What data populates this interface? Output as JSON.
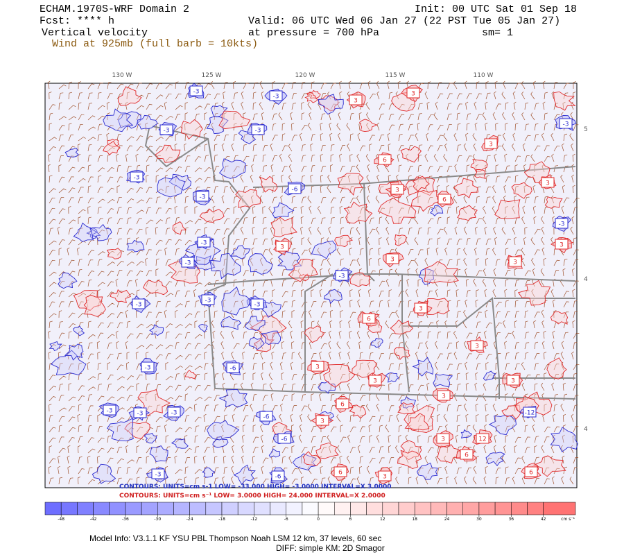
{
  "header": {
    "model": "ECHAM.1970S-WRF Domain 2",
    "init": "Init: 00 UTC Sat 01 Sep 18",
    "fcst": "Fcst: **** h",
    "valid": "Valid: 06 UTC Wed 06 Jan 27 (22 PST Tue 05 Jan 27)",
    "field": "Vertical velocity",
    "level": "at pressure =  700 hPa",
    "smooth": "sm= 1",
    "wind": "Wind at 925mb (full barb = 10kts)"
  },
  "map": {
    "lon_labels": [
      "130 W",
      "125 W",
      "120 W",
      "115 W",
      "110 W"
    ],
    "lat_labels": [
      "5",
      "4",
      "4"
    ],
    "contour_labels": {
      "negative": [
        "-3",
        "-3",
        "-3",
        "-3",
        "-3",
        "-3",
        "-3",
        "-6",
        "-3",
        "-3",
        "-3",
        "-3",
        "-3",
        "-3",
        "-3",
        "-3",
        "-3",
        "-3",
        "-3",
        "-6",
        "-3",
        "-6",
        "-12",
        "-6",
        "-6"
      ],
      "positive": [
        "3",
        "3",
        "6",
        "3",
        "3",
        "3",
        "6",
        "3",
        "3",
        "3",
        "6",
        "3",
        "3",
        "3",
        "3",
        "3",
        "3",
        "3",
        "6",
        "3",
        "6",
        "3",
        "12",
        "6",
        "6",
        "3"
      ]
    }
  },
  "contour_info": {
    "negative": "CONTOURS:  UNITS=cm s-1   LOW=  -33.000     HIGH=  -3.0000     INTERVAL=X  3.0000",
    "positive": "CONTOURS:  UNITS=cm s⁻¹   LOW=  3.0000     HIGH=  24.000     INTERVAL=X  2.0000"
  },
  "colorbar": {
    "lim": [
      -51,
      48
    ],
    "ticks": [
      -48,
      -42,
      -36,
      -30,
      -24,
      -18,
      -12,
      -6,
      0,
      6,
      12,
      18,
      24,
      30,
      36,
      42
    ],
    "unit": "cm s⁻¹",
    "low_color": "#6a6aff",
    "mid_color": "#ffffff",
    "high_color": "#ff6a6a"
  },
  "footer": {
    "model_info": "Model Info: V3.1.1    KF      YSU PBL   Thompson     Noah LSM   12 km,    37 levels,    60 sec",
    "diff": "DIFF: simple KM: 2D Smagor"
  }
}
